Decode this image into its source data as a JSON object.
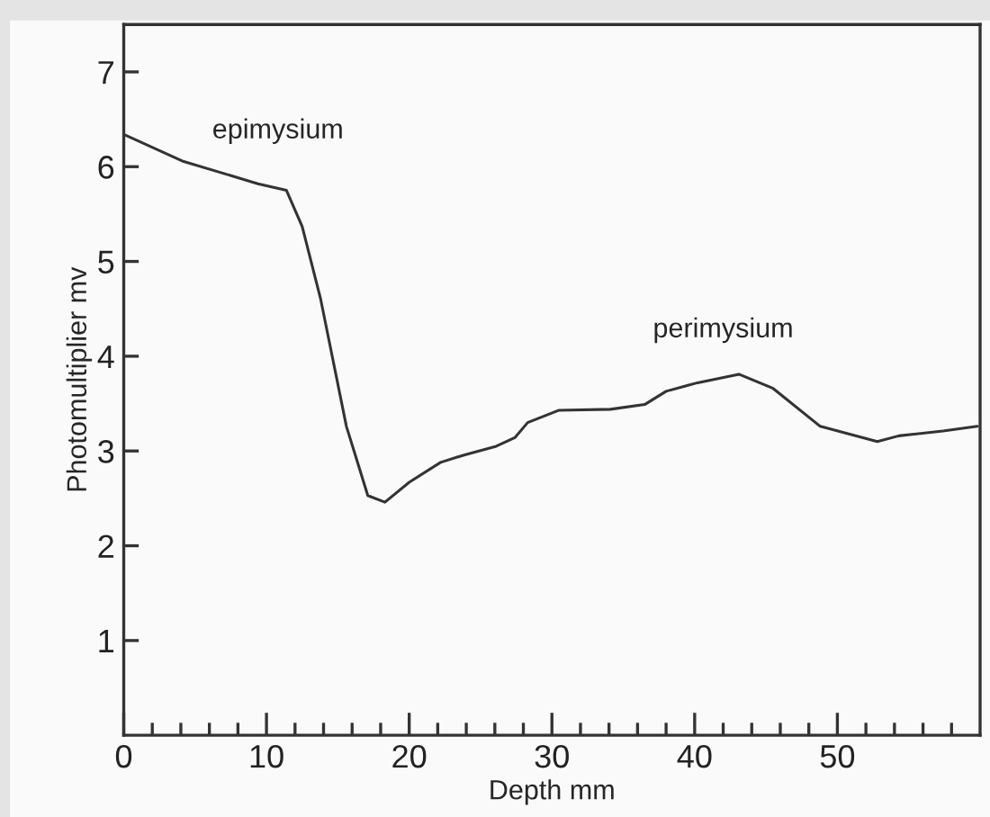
{
  "chart_data": {
    "type": "line",
    "xlabel": "Depth mm",
    "ylabel": "Photomultiplier mv",
    "x": [
      0,
      4.1,
      9.4,
      11.4,
      12.5,
      13.8,
      15.6,
      17.1,
      18.3,
      20.0,
      22.2,
      23.9,
      26.1,
      27.4,
      28.3,
      30.5,
      34.1,
      36.5,
      38.0,
      40.2,
      43.1,
      45.5,
      48.8,
      52.8,
      54.3,
      57.4,
      59.8
    ],
    "series": [
      {
        "color": "#333333",
        "values": [
          6.34,
          6.06,
          5.82,
          5.75,
          5.37,
          4.6,
          3.26,
          2.53,
          2.46,
          2.67,
          2.88,
          2.96,
          3.05,
          3.14,
          3.3,
          3.43,
          3.44,
          3.49,
          3.63,
          3.72,
          3.81,
          3.66,
          3.26,
          3.1,
          3.16,
          3.21,
          3.26
        ]
      }
    ],
    "xlim": [
      0,
      60
    ],
    "ylim": [
      0,
      7.5
    ],
    "xticks": [
      0,
      {
        "value": 2,
        "label": null
      },
      {
        "value": 4,
        "label": null
      },
      {
        "value": 6,
        "label": null
      },
      {
        "value": 8,
        "label": null
      },
      10,
      {
        "value": 12,
        "label": null
      },
      {
        "value": 14,
        "label": null
      },
      {
        "value": 16,
        "label": null
      },
      {
        "value": 18,
        "label": null
      },
      20,
      {
        "value": 22,
        "label": null
      },
      {
        "value": 24,
        "label": null
      },
      {
        "value": 26,
        "label": null
      },
      {
        "value": 28,
        "label": null
      },
      30,
      {
        "value": 32,
        "label": null
      },
      {
        "value": 34,
        "label": null
      },
      {
        "value": 36,
        "label": null
      },
      {
        "value": 38,
        "label": null
      },
      40,
      {
        "value": 42,
        "label": null
      },
      {
        "value": 44,
        "label": null
      },
      {
        "value": 46,
        "label": null
      },
      {
        "value": 48,
        "label": null
      },
      50,
      {
        "value": 52,
        "label": null
      },
      {
        "value": 54,
        "label": null
      },
      {
        "value": 56,
        "label": null
      },
      {
        "value": 58,
        "label": null
      }
    ],
    "yticks": [
      1,
      2,
      3,
      4,
      5,
      6,
      7
    ],
    "annotations": [
      "epimysium",
      "perimysium"
    ],
    "grid": false,
    "legend": false,
    "marker": "none",
    "line_style": "solid"
  }
}
